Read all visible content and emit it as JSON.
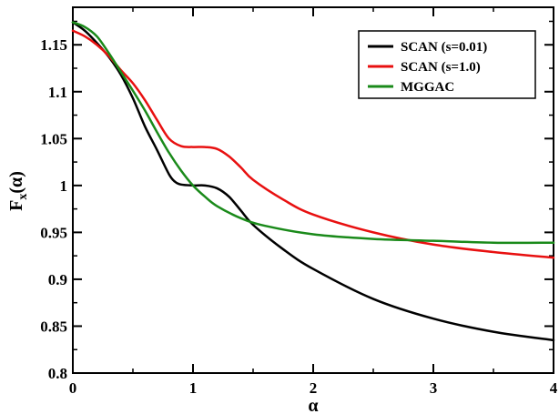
{
  "chart_data": {
    "type": "line",
    "title": "",
    "xlabel": "α",
    "ylabel_main": "F",
    "ylabel_sub": "x",
    "ylabel_tail": "(α)",
    "xlim": [
      0,
      4
    ],
    "ylim": [
      0.8,
      1.19
    ],
    "xticks": [
      0,
      1,
      2,
      3,
      4
    ],
    "xtick_labels": [
      "0",
      "1",
      "2",
      "3",
      "4"
    ],
    "yticks": [
      0.8,
      0.85,
      0.9,
      0.95,
      1.0,
      1.05,
      1.1,
      1.15
    ],
    "ytick_labels": [
      "0.8",
      "0.85",
      "0.9",
      "0.95",
      "1",
      "1.05",
      "1.1",
      "1.15"
    ],
    "grid": false,
    "legend_position": "top-right",
    "series": [
      {
        "name": "SCAN (s=0.01)",
        "color": "#000000",
        "x": [
          0,
          0.1,
          0.2,
          0.3,
          0.4,
          0.5,
          0.6,
          0.7,
          0.8,
          0.85,
          0.9,
          1.0,
          1.1,
          1.2,
          1.3,
          1.4,
          1.5,
          1.75,
          2.0,
          2.5,
          3.0,
          3.5,
          4.0
        ],
        "y": [
          1.174,
          1.165,
          1.152,
          1.137,
          1.118,
          1.093,
          1.063,
          1.038,
          1.012,
          1.004,
          1.001,
          1.0,
          1.0,
          0.997,
          0.988,
          0.973,
          0.958,
          0.932,
          0.911,
          0.879,
          0.858,
          0.844,
          0.835
        ]
      },
      {
        "name": "SCAN (s=1.0)",
        "color": "#e81010",
        "x": [
          0,
          0.1,
          0.2,
          0.3,
          0.4,
          0.5,
          0.6,
          0.7,
          0.8,
          0.9,
          1.0,
          1.1,
          1.2,
          1.3,
          1.4,
          1.5,
          1.75,
          2.0,
          2.5,
          3.0,
          3.5,
          4.0
        ],
        "y": [
          1.165,
          1.159,
          1.15,
          1.138,
          1.123,
          1.109,
          1.091,
          1.07,
          1.05,
          1.042,
          1.041,
          1.041,
          1.039,
          1.031,
          1.019,
          1.006,
          0.985,
          0.969,
          0.95,
          0.937,
          0.929,
          0.923
        ]
      },
      {
        "name": "MGGAC",
        "color": "#1a8a1a",
        "x": [
          0,
          0.1,
          0.2,
          0.3,
          0.4,
          0.5,
          0.6,
          0.7,
          0.8,
          0.9,
          1.0,
          1.1,
          1.2,
          1.4,
          1.6,
          2.0,
          2.5,
          3.0,
          3.5,
          4.0
        ],
        "y": [
          1.174,
          1.169,
          1.159,
          1.141,
          1.121,
          1.101,
          1.08,
          1.057,
          1.035,
          1.016,
          1.0,
          0.988,
          0.978,
          0.965,
          0.957,
          0.948,
          0.943,
          0.941,
          0.939,
          0.939
        ]
      }
    ]
  }
}
